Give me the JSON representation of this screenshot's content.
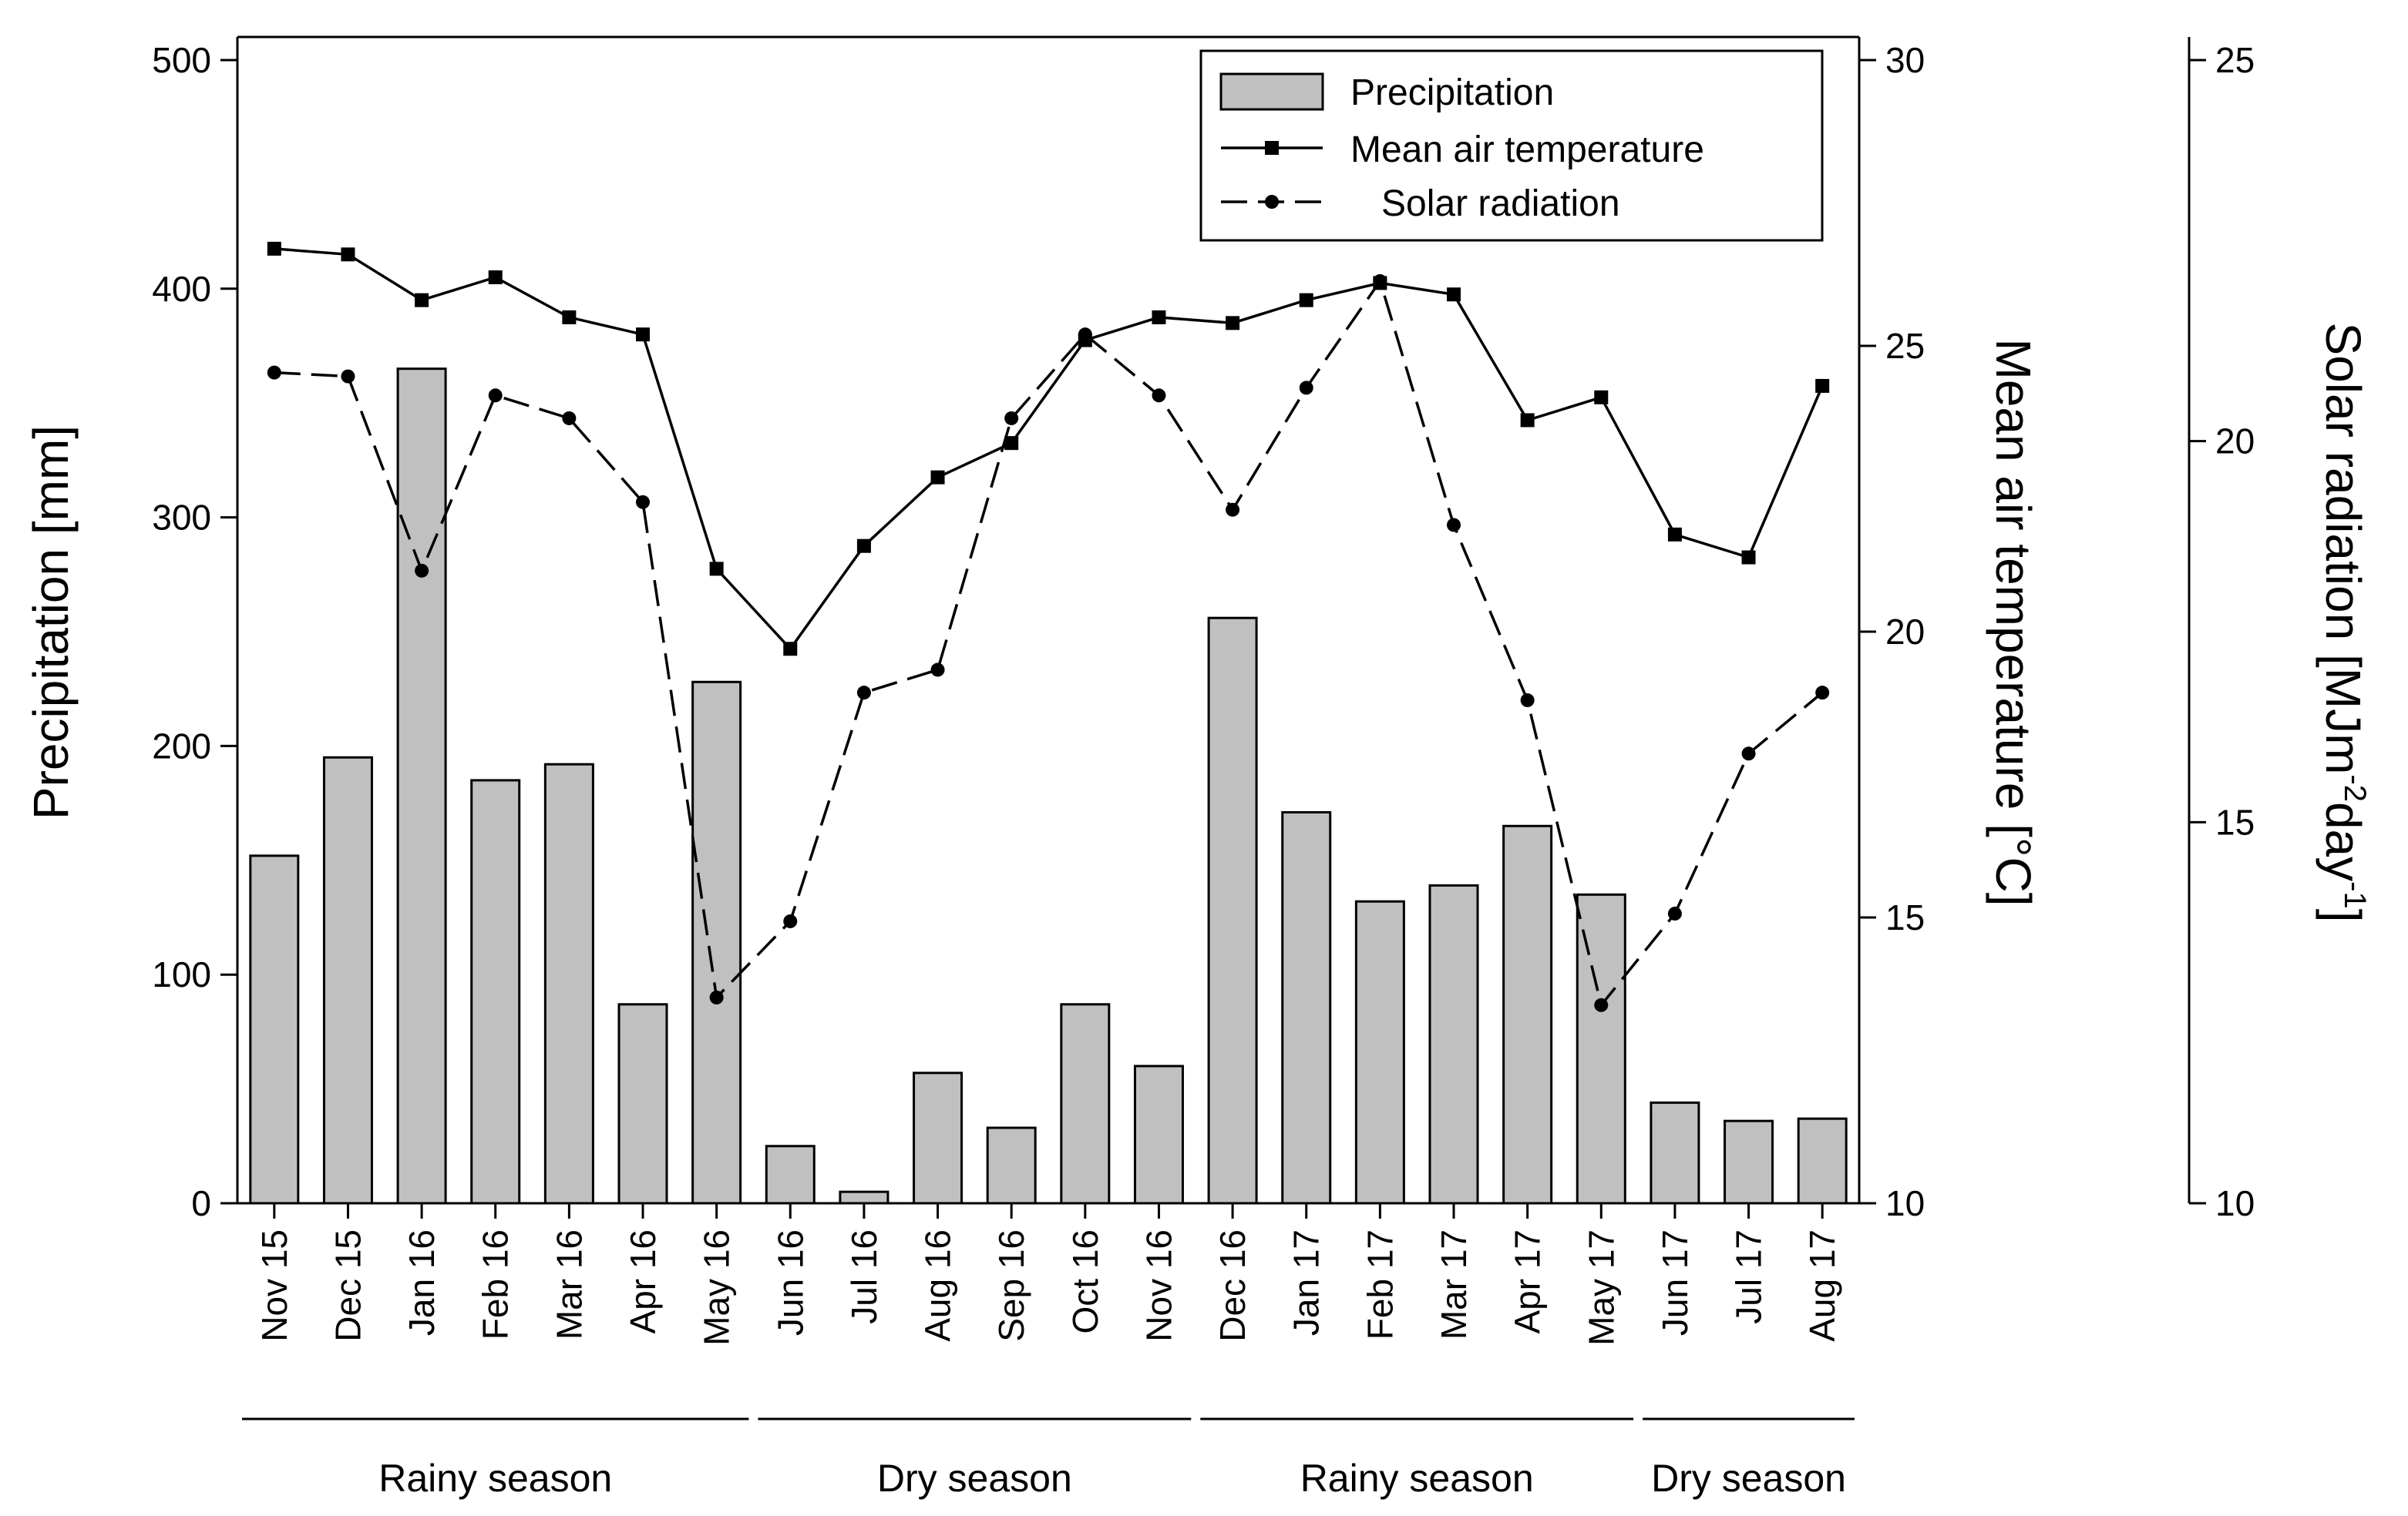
{
  "chart_data": {
    "type": "bar+line",
    "categories": [
      "Nov 15",
      "Dec 15",
      "Jan 16",
      "Feb 16",
      "Mar 16",
      "Apr 16",
      "May 16",
      "Jun 16",
      "Jul 16",
      "Aug 16",
      "Sep 16",
      "Oct 16",
      "Nov 16",
      "Dec 16",
      "Jan 17",
      "Feb 17",
      "Mar 17",
      "Apr 17",
      "May 17",
      "Jun 17",
      "Jul 17",
      "Aug 17"
    ],
    "series": [
      {
        "name": "Precipitation",
        "kind": "bar",
        "axis": "left",
        "values": [
          152,
          195,
          365,
          185,
          192,
          87,
          228,
          25,
          5,
          57,
          33,
          87,
          60,
          256,
          171,
          132,
          139,
          165,
          135,
          44,
          36,
          37
        ]
      },
      {
        "name": "Mean air temperature",
        "kind": "line-solid-square",
        "axis": "right1",
        "values": [
          26.7,
          26.6,
          25.8,
          26.2,
          25.5,
          25.2,
          21.1,
          19.7,
          21.5,
          22.7,
          23.3,
          25.1,
          25.5,
          25.4,
          25.8,
          26.1,
          25.9,
          23.7,
          24.1,
          21.7,
          21.3,
          24.3
        ]
      },
      {
        "name": "Solar radiation",
        "kind": "line-dashed-circle",
        "axis": "right2",
        "values": [
          20.9,
          20.85,
          18.3,
          20.6,
          20.3,
          19.2,
          12.7,
          13.7,
          16.7,
          17.0,
          20.3,
          21.4,
          20.6,
          19.1,
          20.7,
          22.1,
          18.9,
          16.6,
          12.6,
          13.8,
          15.9,
          16.7
        ]
      }
    ],
    "title": "",
    "axes": {
      "left": {
        "label": "Precipitation [mm]",
        "min": 0,
        "max": 500,
        "ticks": [
          "0",
          "100",
          "200",
          "300",
          "400",
          "500"
        ]
      },
      "right1": {
        "label": "Mean air temperature [°C]",
        "min": 10,
        "max": 30,
        "ticks": [
          "10",
          "15",
          "20",
          "25",
          "30"
        ]
      },
      "right2": {
        "label_main": "Solar radiation [MJm",
        "label_sup1": "-2",
        "label_mid": "day",
        "label_sup2": "-1",
        "label_end": "]",
        "min": 10,
        "max": 25,
        "ticks": [
          "10",
          "15",
          "20",
          "25"
        ]
      }
    },
    "legend": {
      "position": "top-right",
      "entries": [
        "Precipitation",
        "Mean air temperature",
        "Solar radiation"
      ]
    },
    "seasons": [
      {
        "label": "Rainy season",
        "start": 0,
        "end": 6
      },
      {
        "label": "Dry season",
        "start": 7,
        "end": 12
      },
      {
        "label": "Rainy season",
        "start": 13,
        "end": 18
      },
      {
        "label": "Dry season",
        "start": 19,
        "end": 21
      }
    ],
    "grid": false
  }
}
